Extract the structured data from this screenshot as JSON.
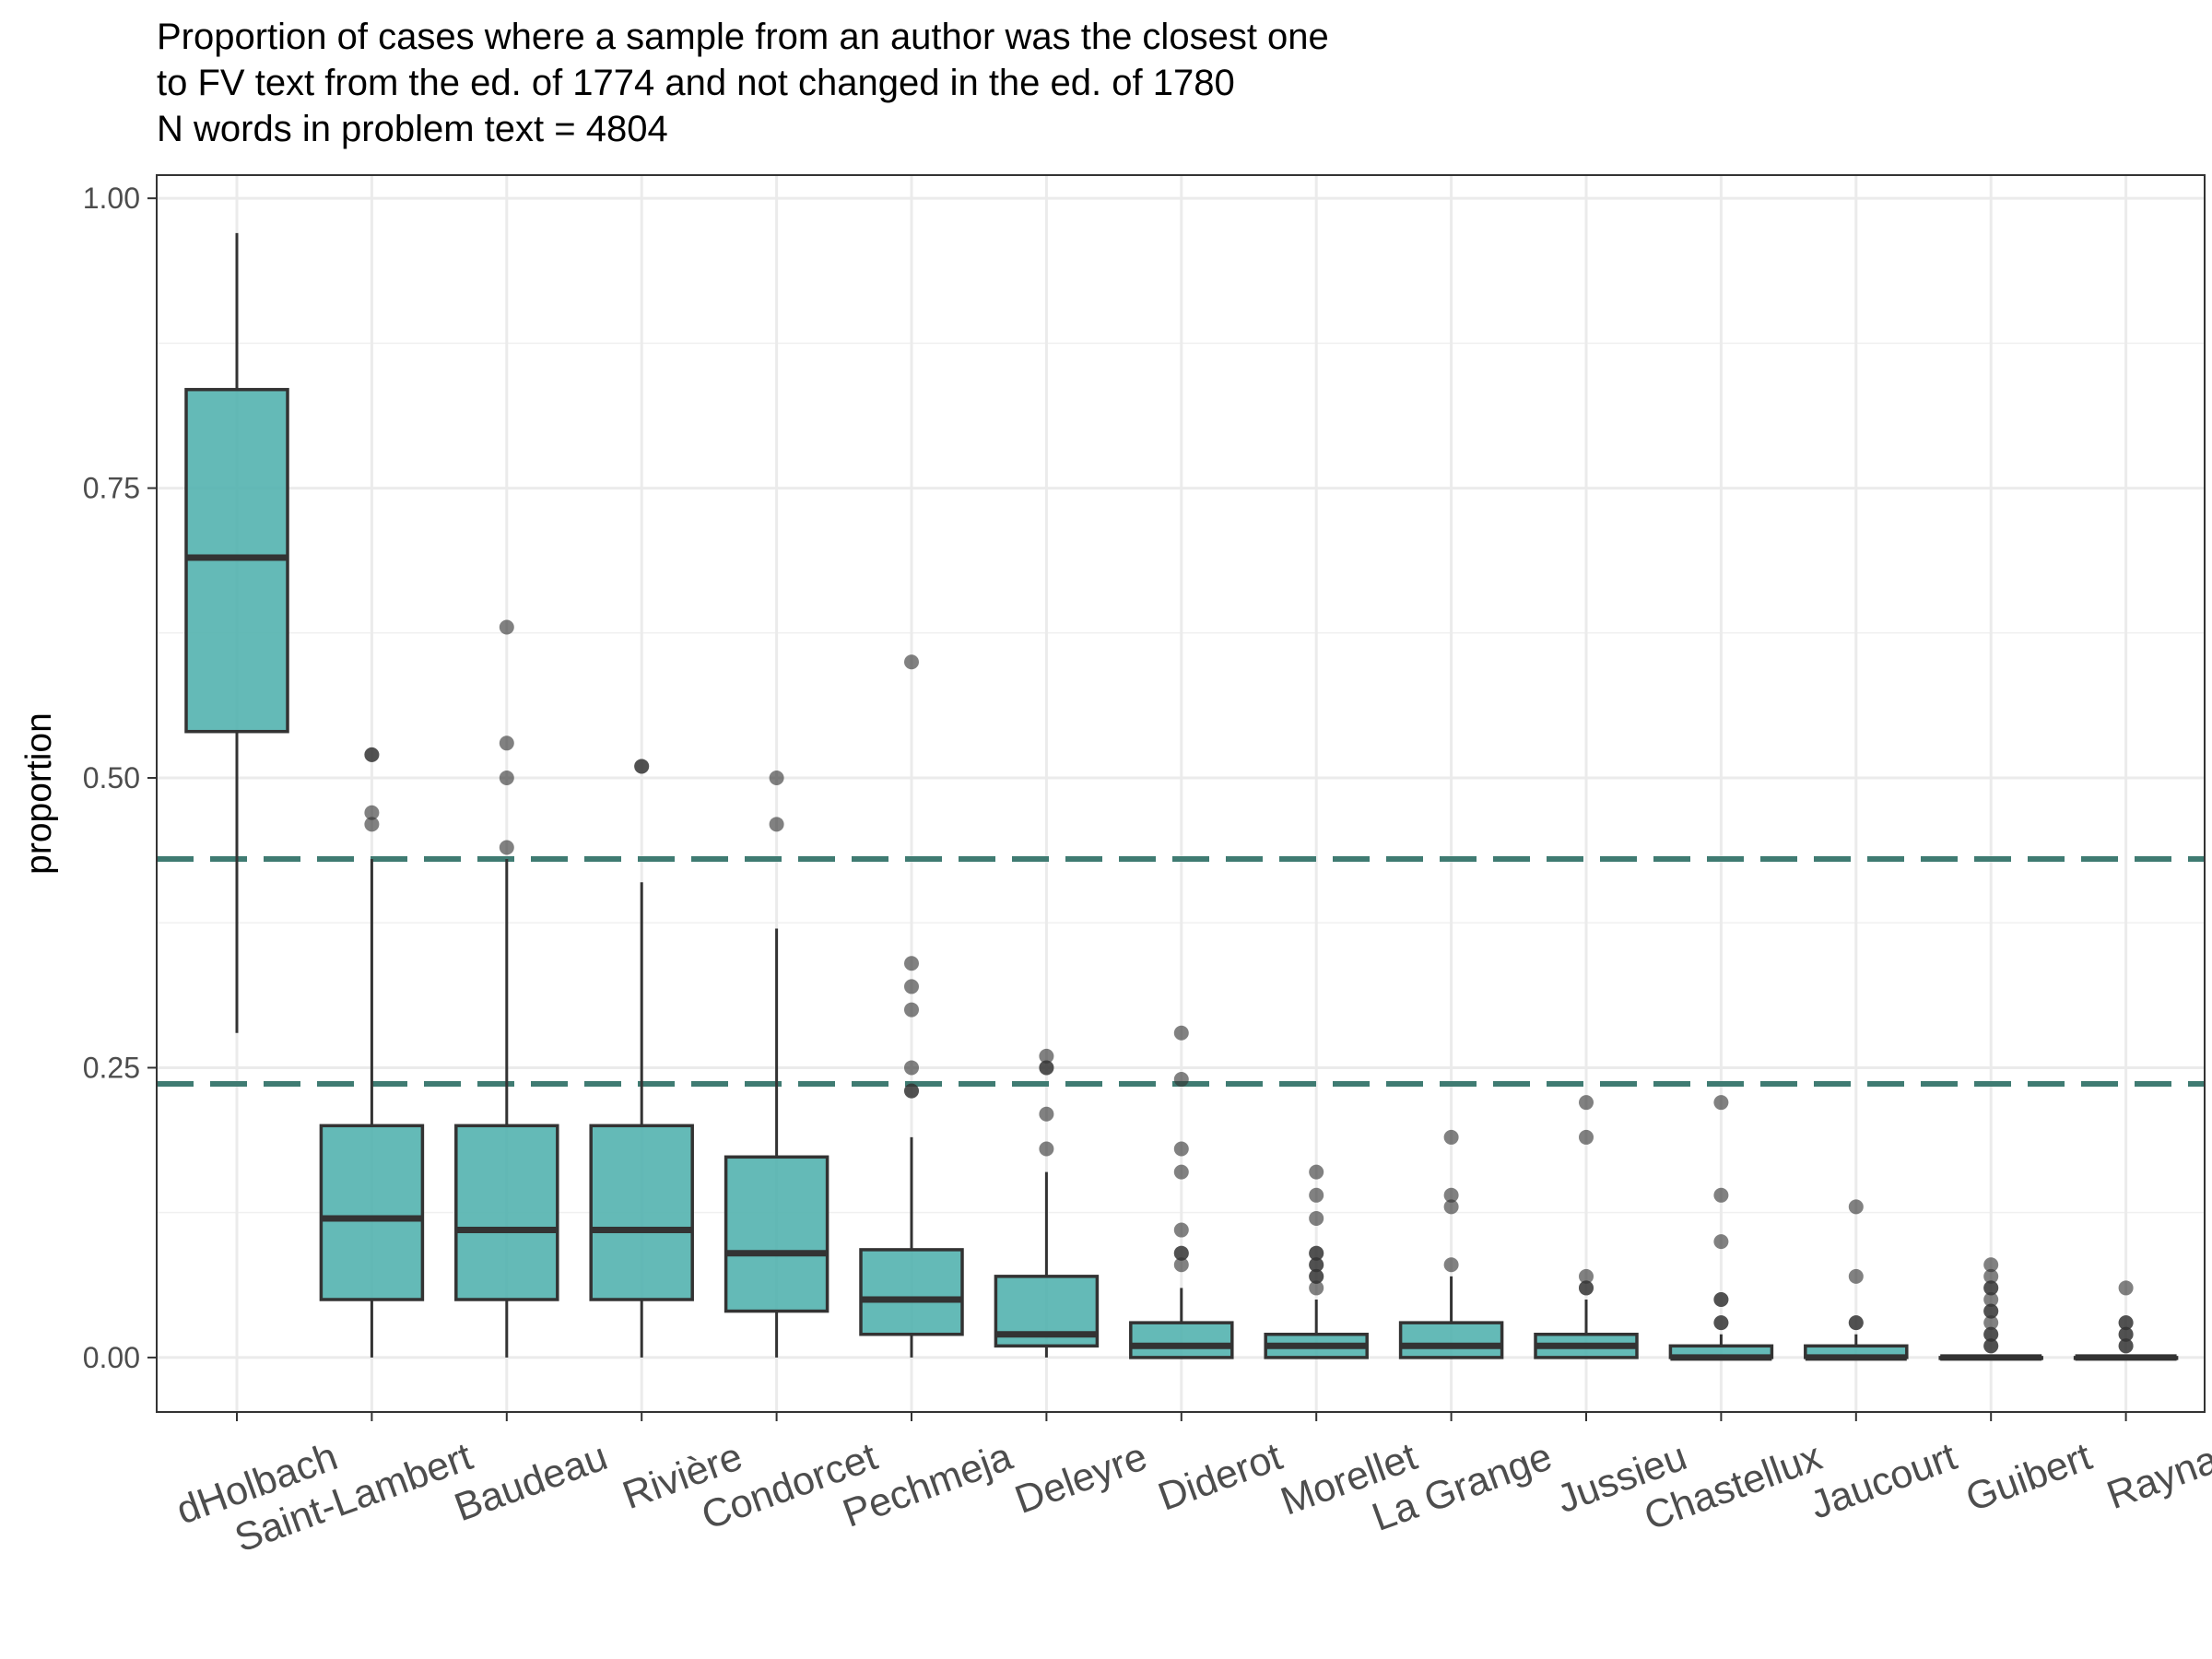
{
  "chart_data": {
    "type": "boxplot",
    "title_lines": [
      "Proportion of cases where a sample from an author was the closest one",
      "to FV text from the ed. of 1774 and not changed in the ed. of 1780",
      "N words in problem text = 4804"
    ],
    "xlabel": "",
    "ylabel": "proportion",
    "ylim": [
      -0.047,
      1.02
    ],
    "y_ticks": [
      0.0,
      0.25,
      0.5,
      0.75,
      1.0
    ],
    "y_tick_labels": [
      "0.00",
      "0.25",
      "0.50",
      "0.75",
      "1.00"
    ],
    "grid": true,
    "box_fill": "#4fb0ad",
    "reference_line_color": "#3f7b72",
    "reference_lines": [
      0.43,
      0.236
    ],
    "categories": [
      "dHolbach",
      "Saint-Lambert",
      "Baudeau",
      "Rivière",
      "Condorcet",
      "Pechmeja",
      "Deleyre",
      "Diderot",
      "Morellet",
      "La Grange",
      "Jussieu",
      "Chastellux",
      "Jaucourt",
      "Guibert",
      "Raynal"
    ],
    "boxes": [
      {
        "category": "dHolbach",
        "whisker_low": 0.28,
        "q1": 0.54,
        "median": 0.69,
        "q3": 0.835,
        "whisker_high": 0.97,
        "outliers": []
      },
      {
        "category": "Saint-Lambert",
        "whisker_low": 0.0,
        "q1": 0.05,
        "median": 0.12,
        "q3": 0.2,
        "whisker_high": 0.43,
        "outliers": [
          0.52,
          0.52,
          0.47,
          0.46
        ]
      },
      {
        "category": "Baudeau",
        "whisker_low": 0.0,
        "q1": 0.05,
        "median": 0.11,
        "q3": 0.2,
        "whisker_high": 0.43,
        "outliers": [
          0.63,
          0.53,
          0.5,
          0.44
        ]
      },
      {
        "category": "Rivière",
        "whisker_low": 0.0,
        "q1": 0.05,
        "median": 0.11,
        "q3": 0.2,
        "whisker_high": 0.41,
        "outliers": [
          0.51,
          0.51
        ]
      },
      {
        "category": "Condorcet",
        "whisker_low": 0.0,
        "q1": 0.04,
        "median": 0.09,
        "q3": 0.173,
        "whisker_high": 0.37,
        "outliers": [
          0.5,
          0.46
        ]
      },
      {
        "category": "Pechmeja",
        "whisker_low": 0.0,
        "q1": 0.02,
        "median": 0.05,
        "q3": 0.093,
        "whisker_high": 0.19,
        "outliers": [
          0.6,
          0.34,
          0.32,
          0.3,
          0.25,
          0.23,
          0.23
        ]
      },
      {
        "category": "Deleyre",
        "whisker_low": 0.0,
        "q1": 0.01,
        "median": 0.02,
        "q3": 0.07,
        "whisker_high": 0.16,
        "outliers": [
          0.26,
          0.25,
          0.25,
          0.21,
          0.18
        ]
      },
      {
        "category": "Diderot",
        "whisker_low": 0.0,
        "q1": 0.0,
        "median": 0.01,
        "q3": 0.03,
        "whisker_high": 0.06,
        "outliers": [
          0.28,
          0.24,
          0.18,
          0.16,
          0.11,
          0.09,
          0.09,
          0.08
        ]
      },
      {
        "category": "Morellet",
        "whisker_low": 0.0,
        "q1": 0.0,
        "median": 0.01,
        "q3": 0.02,
        "whisker_high": 0.05,
        "outliers": [
          0.16,
          0.14,
          0.12,
          0.09,
          0.09,
          0.08,
          0.08,
          0.07,
          0.07,
          0.06
        ]
      },
      {
        "category": "La Grange",
        "whisker_low": 0.0,
        "q1": 0.0,
        "median": 0.01,
        "q3": 0.03,
        "whisker_high": 0.07,
        "outliers": [
          0.19,
          0.14,
          0.13,
          0.08
        ]
      },
      {
        "category": "Jussieu",
        "whisker_low": 0.0,
        "q1": 0.0,
        "median": 0.01,
        "q3": 0.02,
        "whisker_high": 0.05,
        "outliers": [
          0.22,
          0.19,
          0.07,
          0.06,
          0.06
        ]
      },
      {
        "category": "Chastellux",
        "whisker_low": 0.0,
        "q1": 0.0,
        "median": 0.0,
        "q3": 0.01,
        "whisker_high": 0.02,
        "outliers": [
          0.22,
          0.14,
          0.1,
          0.05,
          0.05,
          0.03,
          0.03
        ]
      },
      {
        "category": "Jaucourt",
        "whisker_low": 0.0,
        "q1": 0.0,
        "median": 0.0,
        "q3": 0.01,
        "whisker_high": 0.02,
        "outliers": [
          0.13,
          0.07,
          0.03,
          0.03
        ]
      },
      {
        "category": "Guibert",
        "whisker_low": 0.0,
        "q1": 0.0,
        "median": 0.0,
        "q3": 0.0,
        "whisker_high": 0.0,
        "outliers": [
          0.08,
          0.07,
          0.06,
          0.06,
          0.05,
          0.04,
          0.04,
          0.03,
          0.02,
          0.02,
          0.01,
          0.01
        ]
      },
      {
        "category": "Raynal",
        "whisker_low": 0.0,
        "q1": 0.0,
        "median": 0.0,
        "q3": 0.0,
        "whisker_high": 0.0,
        "outliers": [
          0.06,
          0.03,
          0.03,
          0.02,
          0.02,
          0.01,
          0.01
        ]
      }
    ]
  }
}
